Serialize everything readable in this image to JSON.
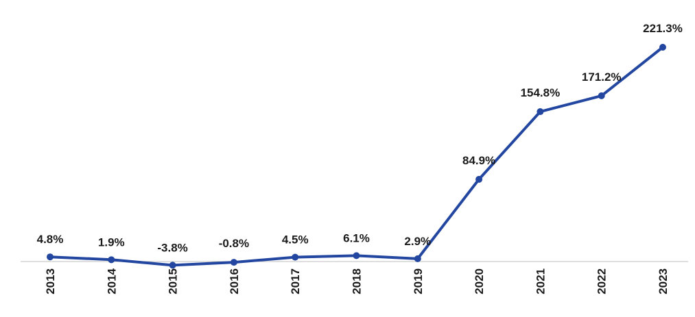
{
  "chart_data": {
    "type": "line",
    "categories": [
      "2013",
      "2014",
      "2015",
      "2016",
      "2017",
      "2018",
      "2019",
      "2020",
      "2021",
      "2022",
      "2023"
    ],
    "series": [
      {
        "values": [
          4.8,
          1.9,
          -3.8,
          -0.8,
          4.5,
          6.1,
          2.9,
          84.9,
          154.8,
          171.2,
          221.3
        ],
        "labels": [
          "4.8%",
          "1.9%",
          "-3.8%",
          "-0.8%",
          "4.5%",
          "6.1%",
          "2.9%",
          "84.9%",
          "154.8%",
          "171.2%",
          "221.3%"
        ],
        "color": "#2347a0"
      }
    ],
    "title": "",
    "xlabel": "",
    "ylabel": "",
    "ylim": [
      -5,
      225
    ],
    "grid": false,
    "legend": "none",
    "axis_color": "#bfbfbf",
    "label_color": "#1a1a1a"
  }
}
